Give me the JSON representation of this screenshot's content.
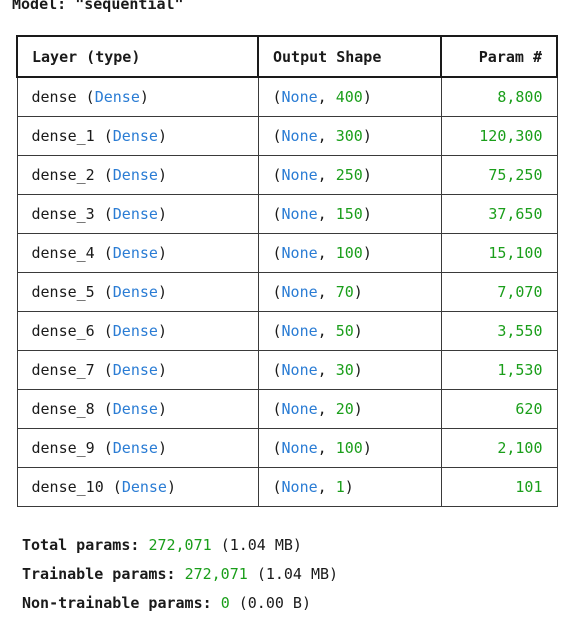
{
  "model": {
    "title": "Model: \"sequential\""
  },
  "table": {
    "headers": {
      "layer": "Layer (type)",
      "shape": "Output Shape",
      "params": "Param #"
    },
    "rows": [
      {
        "name": "dense",
        "type": "Dense",
        "units": "400",
        "params": "8,800"
      },
      {
        "name": "dense_1",
        "type": "Dense",
        "units": "300",
        "params": "120,300"
      },
      {
        "name": "dense_2",
        "type": "Dense",
        "units": "250",
        "params": "75,250"
      },
      {
        "name": "dense_3",
        "type": "Dense",
        "units": "150",
        "params": "37,650"
      },
      {
        "name": "dense_4",
        "type": "Dense",
        "units": "100",
        "params": "15,100"
      },
      {
        "name": "dense_5",
        "type": "Dense",
        "units": "70",
        "params": "7,070"
      },
      {
        "name": "dense_6",
        "type": "Dense",
        "units": "50",
        "params": "3,550"
      },
      {
        "name": "dense_7",
        "type": "Dense",
        "units": "30",
        "params": "1,530"
      },
      {
        "name": "dense_8",
        "type": "Dense",
        "units": "20",
        "params": "620"
      },
      {
        "name": "dense_9",
        "type": "Dense",
        "units": "100",
        "params": "2,100"
      },
      {
        "name": "dense_10",
        "type": "Dense",
        "units": "1",
        "params": "101"
      }
    ]
  },
  "totals": {
    "total": {
      "label": "Total params:",
      "value": "272,071",
      "size": "(1.04 MB)"
    },
    "trainable": {
      "label": "Trainable params:",
      "value": "272,071",
      "size": "(1.04 MB)"
    },
    "non_trainable": {
      "label": "Non-trainable params:",
      "value": "0",
      "size": "(0.00 B)"
    }
  },
  "colors": {
    "type_text": "#2a7cd4",
    "number_text": "#1a9e1a",
    "border": "#3a3a3a"
  }
}
